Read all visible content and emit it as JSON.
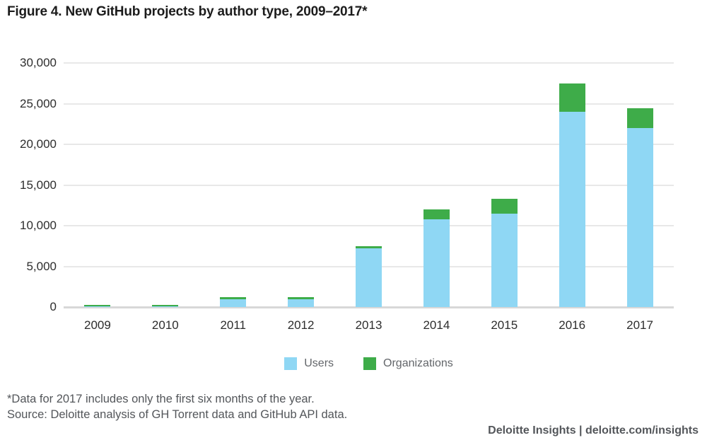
{
  "title": "Figure 4. New GitHub projects by author type, 2009–2017*",
  "chart_data": {
    "type": "bar",
    "stacked": true,
    "title": "Figure 4. New GitHub projects by author type, 2009–2017*",
    "categories": [
      "2009",
      "2010",
      "2011",
      "2012",
      "2013",
      "2014",
      "2015",
      "2016",
      "2017"
    ],
    "series": [
      {
        "name": "Users",
        "color": "#8fd7f4",
        "values": [
          100,
          100,
          1000,
          1000,
          7200,
          10800,
          11500,
          24000,
          22000
        ]
      },
      {
        "name": "Organizations",
        "color": "#3eac49",
        "values": [
          150,
          150,
          200,
          250,
          300,
          1200,
          1800,
          3500,
          2400
        ]
      }
    ],
    "xlabel": "",
    "ylabel": "",
    "ylim": [
      0,
      30000
    ],
    "yticks": [
      {
        "value": 30000,
        "label": "30,000"
      },
      {
        "value": 25000,
        "label": "25,000"
      },
      {
        "value": 20000,
        "label": "20,000"
      },
      {
        "value": 15000,
        "label": "15,000"
      },
      {
        "value": 10000,
        "label": "10,000"
      },
      {
        "value": 5000,
        "label": "5,000"
      },
      {
        "value": 0,
        "label": "0"
      }
    ],
    "grid": "horizontal",
    "legend_position": "bottom"
  },
  "legend": {
    "users_label": "Users",
    "organizations_label": "Organizations"
  },
  "footnote": "*Data for 2017 includes only the first six months of the year.",
  "source": "Source: Deloitte analysis of GH Torrent data and GitHub API data.",
  "branding": "Deloitte Insights | deloitte.com/insights",
  "colors": {
    "users": "#8fd7f4",
    "organizations": "#3eac49",
    "gridline": "#e8e8e8",
    "zero_line": "#d8d8d8",
    "text_dark": "#1c1c1c",
    "text_gray": "#53565a"
  }
}
